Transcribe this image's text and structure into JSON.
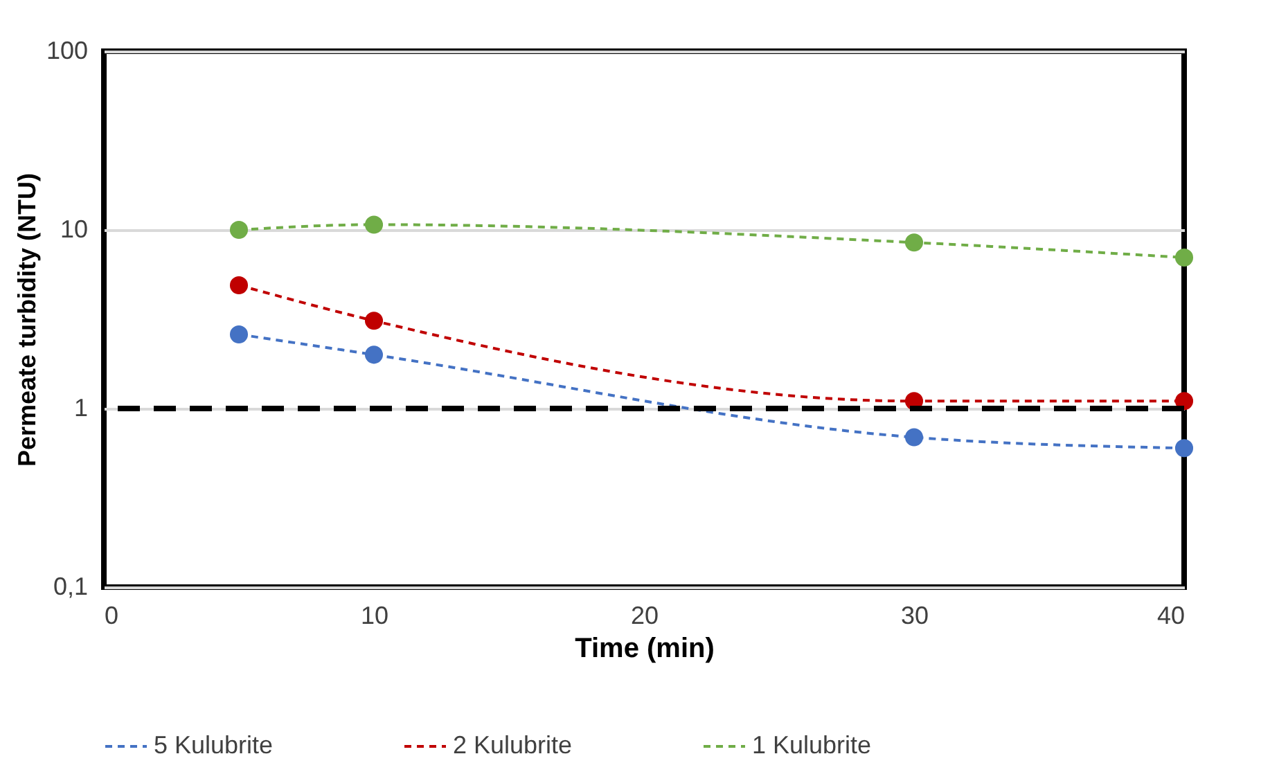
{
  "chart_data": {
    "type": "line",
    "xlabel": "Time (min)",
    "ylabel": "Permeate turbidity (NTU)",
    "x": [
      5,
      10,
      30,
      40
    ],
    "series": [
      {
        "name": "5 Kulubrite",
        "color": "#4472c4",
        "values": [
          2.6,
          2.0,
          0.69,
          0.6
        ]
      },
      {
        "name": "2 Kulubrite",
        "color": "#c00000",
        "values": [
          4.9,
          3.1,
          1.1,
          1.1
        ]
      },
      {
        "name": "1 Kulubrite",
        "color": "#70ad47",
        "values": [
          10,
          10.7,
          8.5,
          7.0
        ]
      }
    ],
    "xlim": [
      0,
      40
    ],
    "xticks": [
      0,
      10,
      20,
      30,
      40
    ],
    "ylim": [
      0.1,
      100
    ],
    "yticks": [
      {
        "value": 0.1,
        "label": "0,1"
      },
      1,
      10,
      100
    ],
    "log": "y",
    "grid": "y",
    "legend": "bottom",
    "marker": "circle",
    "line_style": "dashed",
    "ref_lines": [
      {
        "axis": "y",
        "value": 1,
        "color": "#000000",
        "line_style": "dashed"
      }
    ]
  }
}
